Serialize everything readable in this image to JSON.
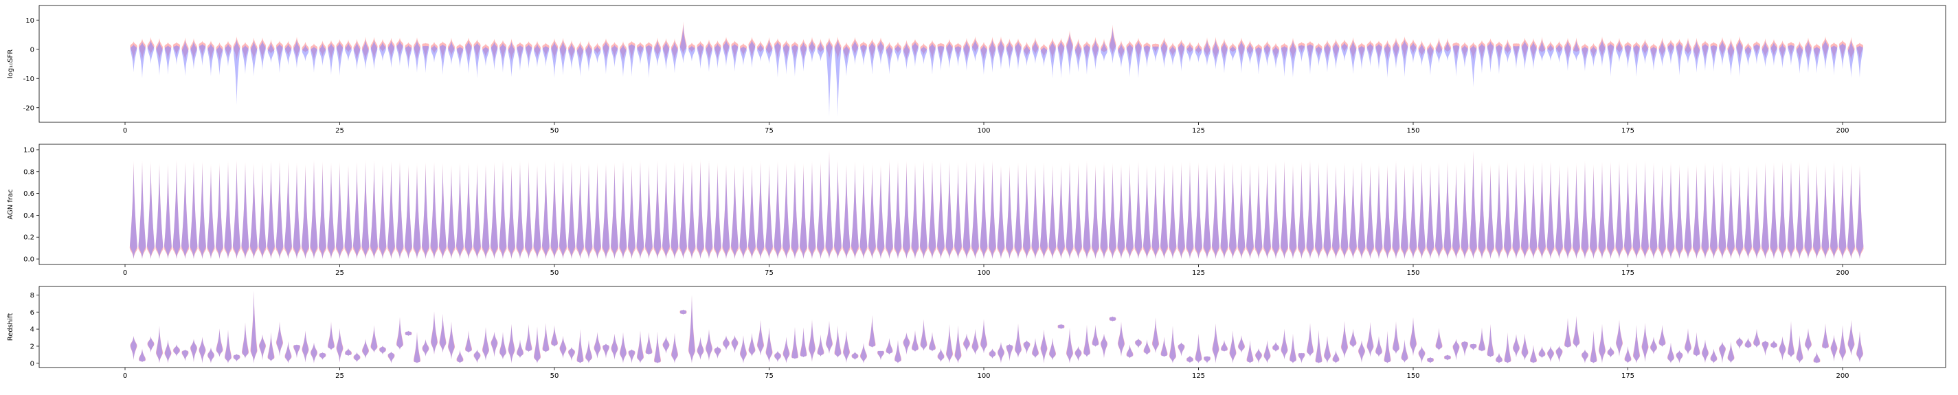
{
  "figure": {
    "colors": {
      "series_a": "#ff8080",
      "series_b": "#8080ff",
      "frame": "#000000"
    }
  },
  "chart_data": [
    {
      "type": "violin",
      "panel": 1,
      "ylabel": "log₁₀SFR",
      "xlim": [
        -10,
        212
      ],
      "ylim": [
        -25,
        15
      ],
      "xticks": [
        0,
        25,
        50,
        75,
        100,
        125,
        150,
        175,
        200
      ],
      "yticks": [
        -20,
        -10,
        0,
        10
      ],
      "grid": false,
      "series": [
        {
          "color": "#ff8080",
          "median": 0.5,
          "spread_lo": 3,
          "spread_hi": 3
        },
        {
          "color": "#8080ff",
          "median": -0.5,
          "spread_lo": 6,
          "spread_hi": 2
        }
      ],
      "n_violins": 202,
      "notable": [
        {
          "x": 13,
          "min": -19
        },
        {
          "x": 65,
          "max": 9.5
        },
        {
          "x": 82,
          "min": -23
        },
        {
          "x": 83,
          "min": -23
        },
        {
          "x": 110,
          "max": 6.5
        },
        {
          "x": 115,
          "max": 8.5
        },
        {
          "x": 157,
          "min": -13
        }
      ]
    },
    {
      "type": "violin",
      "panel": 2,
      "ylabel": "AGN frac",
      "xlim": [
        -10,
        212
      ],
      "ylim": [
        -0.05,
        1.05
      ],
      "xticks": [
        0,
        25,
        50,
        75,
        100,
        125,
        150,
        175,
        200
      ],
      "yticks": [
        0.0,
        0.2,
        0.4,
        0.6,
        0.8,
        1.0
      ],
      "grid": false,
      "n_violins": 202,
      "max_typical": 0.9,
      "notable": [
        {
          "x": 82,
          "max": 1.0
        },
        {
          "x": 157,
          "max": 1.0
        }
      ]
    },
    {
      "type": "violin",
      "panel": 3,
      "ylabel": "Redshift",
      "xlim": [
        -10,
        212
      ],
      "ylim": [
        -0.5,
        9
      ],
      "xticks": [
        0,
        25,
        50,
        75,
        100,
        125,
        150,
        175,
        200
      ],
      "yticks": [
        0,
        2,
        4,
        6,
        8
      ],
      "grid": false,
      "n_violins": 202,
      "notable": [
        {
          "x": 15,
          "max": 8.5
        },
        {
          "x": 33,
          "center": 3.5
        },
        {
          "x": 65,
          "center": 6.0
        },
        {
          "x": 66,
          "max": 8.0
        },
        {
          "x": 109,
          "center": 4.3
        },
        {
          "x": 115,
          "center": 5.2
        }
      ]
    }
  ]
}
